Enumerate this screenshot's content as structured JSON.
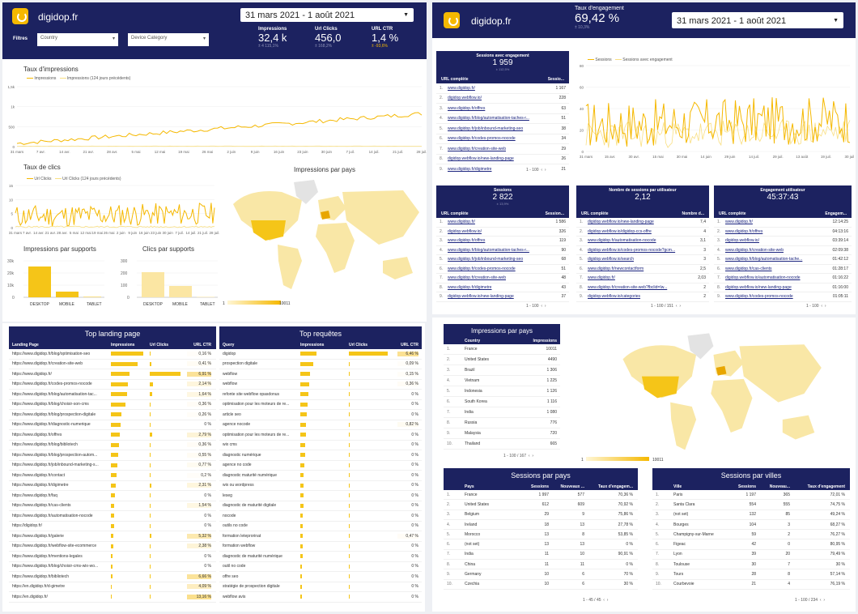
{
  "brand": "digidop.fr",
  "date_range": "31 mars 2021 - 1 août 2021",
  "filters": {
    "label": "Filtres",
    "country": "Country",
    "device": "Device Category"
  },
  "kpis": [
    {
      "label": "Impressions",
      "value": "32,4 k",
      "change": "± 4 115,1%"
    },
    {
      "label": "Url Clicks",
      "value": "456,0",
      "change": "± 168,2%"
    },
    {
      "label": "URL CTR",
      "value": "1,4 %",
      "change": "± -93,6%"
    }
  ],
  "engagement": {
    "label": "Taux d'engagement",
    "value": "69,42 %",
    "change": "± 10,3%"
  },
  "colors": {
    "navy": "#1c2260",
    "yellow": "#f5b800",
    "light_yellow": "#f9df82"
  },
  "imp_chart": {
    "title": "Taux d'impressions",
    "legend": [
      "Impressions",
      "Impressions (124 jours précédents)"
    ],
    "yticks": [
      "1,5k",
      "1k",
      "500",
      "0"
    ],
    "xticks": [
      "31 mars",
      "7 avr.",
      "14 avr.",
      "21 avr.",
      "28 avr.",
      "5 mai",
      "12 mai",
      "19 mai",
      "26 mai",
      "2 juin",
      "9 juin",
      "16 juin",
      "23 juin",
      "30 juin",
      "7 juil.",
      "14 juil.",
      "21 juil.",
      "28 juil."
    ]
  },
  "clk_chart": {
    "title": "Taux de clics",
    "legend": [
      "Url Clicks",
      "Url Clicks (124 jours précédents)"
    ],
    "yticks": [
      "15",
      "10",
      "5",
      "0"
    ],
    "xticks": [
      "31 mars",
      "7 avr.",
      "14 avr.",
      "21 avr.",
      "28 avr.",
      "5 mai",
      "12 mai",
      "19 mai",
      "26 mai",
      "2 juin",
      "9 juin",
      "16 juin",
      "23 juin",
      "30 juin",
      "7 juil.",
      "14 juil.",
      "21 juil.",
      "28 juil."
    ]
  },
  "supports": {
    "title_imp": "Impressions par supports",
    "title_clk": "Clics par supports",
    "yticks_imp": [
      "30k",
      "20k",
      "10k",
      "0"
    ],
    "yticks_clk": [
      "300",
      "200",
      "100",
      "0"
    ],
    "categories": [
      "DESKTOP",
      "MOBILE",
      "TABLET"
    ]
  },
  "map1": {
    "title": "Impressions par pays",
    "min": "1",
    "max": "10011"
  },
  "sessions_chart": {
    "legend": [
      "Sessions",
      "Sessions avec engagement"
    ],
    "yticks": [
      "80",
      "60",
      "40",
      "20",
      "0"
    ],
    "xticks": [
      "31 mars",
      "15 avr.",
      "30 avr.",
      "15 mai",
      "30 mai",
      "14 juin",
      "29 juin",
      "14 juil.",
      "29 juil.",
      "13 août",
      "19 juil.",
      "30 juil."
    ]
  },
  "tbl_engaged": {
    "title": "Sessions avec engagement",
    "value": "1 959",
    "change": "± 112,5%",
    "cols": [
      "URL complète",
      "Sessio..."
    ],
    "rows": [
      [
        "www.digidop.fr/",
        "1 167"
      ],
      [
        "digidop.webflow.io/",
        "228"
      ],
      [
        "www.digidop.fr/offres",
        "63"
      ],
      [
        "www.digidop.fr/blog/automatisation-taches-r...",
        "51"
      ],
      [
        "www.digidop.fr/job/inbound-marketing-seo",
        "38"
      ],
      [
        "www.digidop.fr/codes-promos-nocode",
        "34"
      ],
      [
        "www.digidop.fr/creation-site-web",
        "29"
      ],
      [
        "digidop.webflow.io/new-landing-page",
        "26"
      ],
      [
        "www.digidop.fr/digimetre",
        "21"
      ]
    ],
    "pager": "1 - 100"
  },
  "tbl_sessions": {
    "title": "Sessions",
    "value": "2 822",
    "change": "± 13,9%",
    "cols": [
      "URL complète",
      "Session..."
    ],
    "rows": [
      [
        "www.digidop.fr/",
        "1 586"
      ],
      [
        "digidop.webflow.io/",
        "326"
      ],
      [
        "www.digidop.fr/offres",
        "119"
      ],
      [
        "www.digidop.fr/blog/automatisation-taches-r...",
        "90"
      ],
      [
        "www.digidop.fr/job/inbound-marketing-seo",
        "68"
      ],
      [
        "www.digidop.fr/codes-promos-nocode",
        "51"
      ],
      [
        "www.digidop.fr/creation-site-web",
        "48"
      ],
      [
        "www.digidop.fr/digimetre",
        "43"
      ],
      [
        "digidop.webflow.io/new-landing-page",
        "37"
      ]
    ],
    "pager": "1 - 100"
  },
  "tbl_per_user": {
    "title": "Nombre de sessions par utilisateur",
    "value": "2,12",
    "cols": [
      "URL complète",
      "Nombre d..."
    ],
    "rows": [
      [
        "digidop.webflow.io/new-landing-page",
        "7,4"
      ],
      [
        "digidop.webflow.io/digidop-ccs-offre",
        "4"
      ],
      [
        "www.digidop.fr/automatisation-nocode",
        "3,1"
      ],
      [
        "digidop.webflow.io/codes-promos-nocode?gcm...",
        "3"
      ],
      [
        "digidop.webflow.io/search",
        "3"
      ],
      [
        "www.digidop.fr/newcontactform",
        "2,5"
      ],
      [
        "www.digidop.fr/",
        "2,03"
      ],
      [
        "www.digidop.fr/creation-site-web?fbclid=Iw...",
        "2"
      ],
      [
        "digidop.webflow.io/categories",
        "2"
      ]
    ],
    "pager": "1 - 100 / 151"
  },
  "tbl_user_eng": {
    "title": "Engagement utilisateur",
    "value": "45:37:43",
    "cols": [
      "URL complète",
      "Engagem..."
    ],
    "rows": [
      [
        "www.digidop.fr/",
        "12:14:25"
      ],
      [
        "www.digidop.fr/offres",
        "04:13:16"
      ],
      [
        "digidop.webflow.io/",
        "03:39:14"
      ],
      [
        "www.digidop.fr/creation-site-web",
        "02:09:38"
      ],
      [
        "www.digidop.fr/blog/automatisation-tache...",
        "01:42:12"
      ],
      [
        "www.digidop.fr/cas-clients",
        "01:28:17"
      ],
      [
        "digidop.webflow.io/automatisation-nocode",
        "01:16:22"
      ],
      [
        "digidop.webflow.io/new-landing-page",
        "01:16:00"
      ],
      [
        "www.digidop.fr/codes-promos-nocode",
        "01:05:11"
      ]
    ],
    "pager": "1 - 100"
  },
  "landing": {
    "title": "Top landing page",
    "cols": [
      "Landing Page",
      "Impressions",
      "Url Clicks",
      "URL CTR"
    ],
    "rows": [
      [
        "https://www.digidop.fr/blog/optimisation-seo",
        "0,16 %",
        0.9,
        0,
        0.05
      ],
      [
        "https://www.digidop.fr/creation-site-web",
        "0,41 %",
        0.75,
        0.05,
        0.1
      ],
      [
        "https://www.digidop.fr/",
        "6,91 %",
        0.52,
        0.9,
        0.9
      ],
      [
        "https://www.digidop.fr/codes-promos-nocode",
        "2,14 %",
        0.48,
        0.1,
        0.3
      ],
      [
        "https://www.digidop.fr/blog/automatisation-tac...",
        "1,64 %",
        0.45,
        0.07,
        0.25
      ],
      [
        "https://www.digidop.fr/blog/choisir-son-cms",
        "0,36 %",
        0.4,
        0.02,
        0.08
      ],
      [
        "https://www.digidop.fr/blog/prospection-digitale",
        "0,26 %",
        0.3,
        0.02,
        0.06
      ],
      [
        "https://www.digidop.fr/diagnostic-numerique",
        "0 %",
        0.28,
        0,
        0
      ],
      [
        "https://www.digidop.fr/offres",
        "2,79 %",
        0.25,
        0.08,
        0.35
      ],
      [
        "https://www.digidop.fr/blog/bibliotech",
        "0,36 %",
        0.22,
        0.02,
        0.08
      ],
      [
        "https://www.digidop.fr/blog/prospection-autom...",
        "0,55 %",
        0.2,
        0.02,
        0.1
      ],
      [
        "https://www.digidop.fr/job/inbound-marketing-s...",
        "0,77 %",
        0.18,
        0.02,
        0.12
      ],
      [
        "https://www.digidop.fr/contact",
        "0,2 %",
        0.16,
        0.01,
        0.05
      ],
      [
        "https://www.digidop.fr/digimetre",
        "2,31 %",
        0.14,
        0.04,
        0.3
      ],
      [
        "https://www.digidop.fr/faq",
        "0 %",
        0.12,
        0,
        0
      ],
      [
        "https://www.digidop.fr/cas-clients",
        "1,54 %",
        0.1,
        0.03,
        0.25
      ],
      [
        "https://www.digidop.fr/automatisation-nocode",
        "0 %",
        0.09,
        0,
        0
      ],
      [
        "https://digidop.fr/",
        "0 %",
        0.08,
        0,
        0
      ],
      [
        "https://www.digidop.fr/galerie",
        "5,32 %",
        0.06,
        0.05,
        0.7
      ],
      [
        "https://www.digidop.fr/webflow-site-ecommerce",
        "2,38 %",
        0.06,
        0.03,
        0.35
      ],
      [
        "https://www.digidop.fr/mentions-legales",
        "0 %",
        0.05,
        0,
        0
      ],
      [
        "https://www.digidop.fr/blog/choisir-cms-wix-wo...",
        "0 %",
        0.05,
        0,
        0
      ],
      [
        "https://www.digidop.fr/bibliotech",
        "6,66 %",
        0.04,
        0.03,
        0.88
      ],
      [
        "https://en.digidop.fr/d-gimetre",
        "4,09 %",
        0.03,
        0.02,
        0.55
      ],
      [
        "https://en.digidop.fr/",
        "13,16 %",
        0.02,
        0.02,
        1
      ]
    ]
  },
  "queries": {
    "title": "Top requêtes",
    "cols": [
      "Query",
      "Impressions",
      "Url Clicks",
      "URL CTR"
    ],
    "rows": [
      [
        "digidop",
        "6,46 %",
        0.35,
        0.85,
        0.95
      ],
      [
        "prospection digitale",
        "0,09 %",
        0.28,
        0.02,
        0.05
      ],
      [
        "webflow",
        "0,15 %",
        0.22,
        0.02,
        0.06
      ],
      [
        "webflow",
        "0,36 %",
        0.2,
        0.02,
        0.08
      ],
      [
        "refonte site webflow opasdonus",
        "0 %",
        0.18,
        0,
        0
      ],
      [
        "optimisation pour les moteurs de re...",
        "0 %",
        0.16,
        0,
        0
      ],
      [
        "article seo",
        "0 %",
        0.14,
        0,
        0
      ],
      [
        "agence nocode",
        "0,82 %",
        0.13,
        0.02,
        0.12
      ],
      [
        "optimisation pour les moteurs de re...",
        "0 %",
        0.12,
        0,
        0
      ],
      [
        "wix cms",
        "0 %",
        0.1,
        0,
        0
      ],
      [
        "diagnostic numérique",
        "0 %",
        0.1,
        0,
        0
      ],
      [
        "agence no code",
        "0 %",
        0.09,
        0,
        0
      ],
      [
        "diagnostic maturité numérique",
        "0 %",
        0.08,
        0,
        0
      ],
      [
        "wix ou wordpress",
        "0 %",
        0.08,
        0,
        0
      ],
      [
        "leseg",
        "0 %",
        0.07,
        0,
        0
      ],
      [
        "diagnostic de maturité digitale",
        "0 %",
        0.07,
        0,
        0
      ],
      [
        "nocode",
        "0 %",
        0.06,
        0,
        0
      ],
      [
        "outils no code",
        "0 %",
        0.06,
        0,
        0
      ],
      [
        "formation leteprorinat",
        "0,47 %",
        0.05,
        0.01,
        0.08
      ],
      [
        "formation webflow",
        "0 %",
        0.05,
        0,
        0
      ],
      [
        "diagnostic de maturité numérique",
        "0 %",
        0.05,
        0,
        0
      ],
      [
        "outil no code",
        "0 %",
        0.04,
        0,
        0
      ],
      [
        "offre seo",
        "0 %",
        0.04,
        0,
        0
      ],
      [
        "stratégie de prospection digitale",
        "0 %",
        0.04,
        0,
        0
      ],
      [
        "webflow avis",
        "0 %",
        0.03,
        0,
        0
      ]
    ]
  },
  "country_tbl": {
    "title": "Impressions par pays",
    "cols": [
      "Country",
      "Impressions"
    ],
    "rows": [
      [
        "France",
        "10011"
      ],
      [
        "United States",
        "4490"
      ],
      [
        "Brazil",
        "1 306"
      ],
      [
        "Vietnam",
        "1 225"
      ],
      [
        "Indonesia",
        "1 126"
      ],
      [
        "South Korea",
        "1 116"
      ],
      [
        "India",
        "1 080"
      ],
      [
        "Russia",
        "776"
      ],
      [
        "Malaysia",
        "720"
      ],
      [
        "Thailand",
        "665"
      ]
    ],
    "pager": "1 - 100 / 167"
  },
  "map2": {
    "min": "1",
    "max": "10011"
  },
  "sess_pays": {
    "title": "Sessions par pays",
    "cols": [
      "Pays",
      "Sessions",
      "Nouveaux ...",
      "Taux d'engagem..."
    ],
    "rows": [
      [
        "France",
        "1 997",
        "577",
        "70,36 %"
      ],
      [
        "United States",
        "612",
        "609",
        "70,92 %"
      ],
      [
        "Belgium",
        "29",
        "9",
        "75,86 %"
      ],
      [
        "Ireland",
        "18",
        "13",
        "27,78 %"
      ],
      [
        "Morocco",
        "13",
        "8",
        "53,85 %"
      ],
      [
        "(not set)",
        "13",
        "13",
        "0 %"
      ],
      [
        "India",
        "11",
        "10",
        "90,91 %"
      ],
      [
        "China",
        "11",
        "11",
        "0 %"
      ],
      [
        "Germany",
        "10",
        "6",
        "70 %"
      ],
      [
        "Czechia",
        "10",
        "6",
        "30 %"
      ]
    ],
    "pager": "1 - 45 / 45"
  },
  "sess_villes": {
    "title": "Sessions par villes",
    "cols": [
      "Ville",
      "Sessions",
      "Nouveau...",
      "Taux d'engagement"
    ],
    "rows": [
      [
        "Paris",
        "1 197",
        "365",
        "72,01 %"
      ],
      [
        "Santa Clara",
        "554",
        "555",
        "74,75 %"
      ],
      [
        "(not set)",
        "132",
        "85",
        "49,24 %"
      ],
      [
        "Bourges",
        "104",
        "3",
        "68,27 %"
      ],
      [
        "Champigny-sur-Marne",
        "59",
        "2",
        "76,27 %"
      ],
      [
        "Figeac",
        "42",
        "0",
        "80,95 %"
      ],
      [
        "Lyon",
        "39",
        "20",
        "79,49 %"
      ],
      [
        "Toulouse",
        "30",
        "7",
        "30 %"
      ],
      [
        "Tours",
        "28",
        "8",
        "57,14 %"
      ],
      [
        "Courbevoie",
        "21",
        "4",
        "76,19 %"
      ]
    ],
    "pager": "1 - 100 / 234"
  }
}
